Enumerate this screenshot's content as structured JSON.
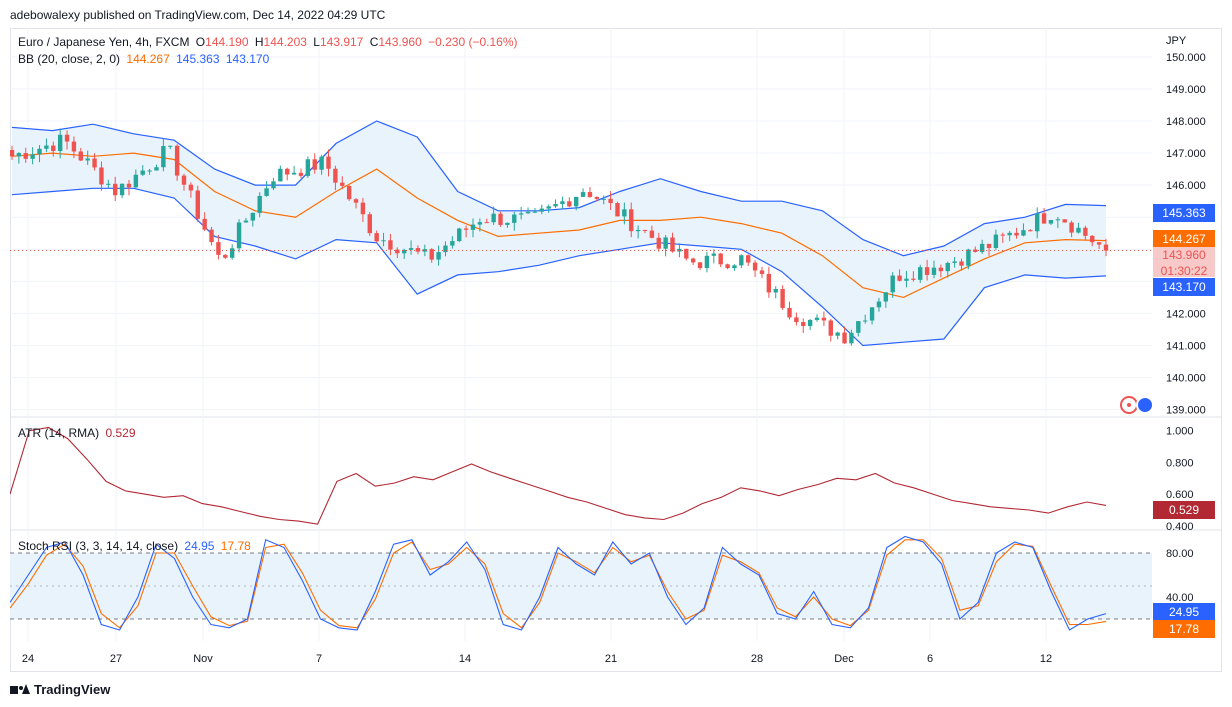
{
  "header": {
    "publisher": "adebowalexy published on TradingView.com, Dec 14, 2022 04:29 UTC"
  },
  "legend_main": {
    "symbol": "Euro / Japanese Yen, 4h, FXCM",
    "o_label": "O",
    "o": "144.190",
    "h_label": "H",
    "h": "144.203",
    "l_label": "L",
    "l": "143.917",
    "c_label": "C",
    "c": "143.960",
    "change": "−0.230 (−0.16%)"
  },
  "legend_bb": {
    "name": "BB (20, close, 2, 0)",
    "basis": "144.267",
    "upper": "145.363",
    "lower": "143.170"
  },
  "legend_atr": {
    "name": "ATR (14, RMA)",
    "value": "0.529"
  },
  "legend_stoch": {
    "name": "Stoch RSI (3, 3, 14, 14, close)",
    "k": "24.95",
    "d": "17.78"
  },
  "badges": {
    "upper": "145.363",
    "basis": "144.267",
    "price": "143.960",
    "countdown": "01:30:22",
    "lower": "143.170",
    "atr": "0.529",
    "stoch_k": "24.95",
    "stoch_d": "17.78"
  },
  "currency": "JPY",
  "footer": {
    "brand": "TradingView"
  },
  "colors": {
    "up": "#26a69a",
    "down": "#ef5350",
    "bb_basis": "#ff6d00",
    "bb_band": "#2962ff",
    "bb_fill": "#e8f3fc",
    "atr": "#b22833",
    "stoch_k": "#2962ff",
    "stoch_d": "#ff6d00"
  },
  "chart_data": [
    {
      "type": "candlestick",
      "title": "Euro / Japanese Yen, 4h, FXCM",
      "ylim": [
        138.8,
        150.9
      ],
      "y_ticks": [
        139,
        140,
        141,
        142,
        143,
        144,
        145,
        146,
        147,
        148,
        149,
        150
      ],
      "y_tick_labels": [
        "139.000",
        "140.000",
        "141.000",
        "142.000",
        "143.000",
        "144.000",
        "145.000",
        "146.000",
        "147.000",
        "148.000",
        "149.000",
        "150.000"
      ],
      "x_tick_labels": [
        "24",
        "27",
        "Nov",
        "7",
        "14",
        "21",
        "28",
        "Dec",
        "6",
        "12"
      ],
      "current_price": 143.96,
      "ohlc_keyframes": [
        {
          "x": "Oct 24",
          "close": 146.9
        },
        {
          "x": "Oct 27",
          "close": 147.4
        },
        {
          "x": "Oct 28",
          "close": 145.8
        },
        {
          "x": "Nov 1",
          "close": 147.1
        },
        {
          "x": "Nov 4",
          "close": 143.6
        },
        {
          "x": "Nov 7",
          "close": 146.3
        },
        {
          "x": "Nov 10",
          "close": 146.7
        },
        {
          "x": "Nov 11",
          "close": 144.4
        },
        {
          "x": "Nov 14",
          "close": 143.7
        },
        {
          "x": "Nov 17",
          "close": 145.0
        },
        {
          "x": "Nov 21",
          "close": 144.9
        },
        {
          "x": "Nov 23",
          "close": 145.9
        },
        {
          "x": "Nov 25",
          "close": 144.7
        },
        {
          "x": "Nov 28",
          "close": 143.6
        },
        {
          "x": "Dec 1",
          "close": 143.7
        },
        {
          "x": "Dec 2",
          "close": 142.0
        },
        {
          "x": "Dec 5",
          "close": 141.3
        },
        {
          "x": "Dec 6",
          "close": 143.2
        },
        {
          "x": "Dec 9",
          "close": 143.6
        },
        {
          "x": "Dec 12",
          "close": 144.3
        },
        {
          "x": "Dec 13",
          "close": 145.2
        },
        {
          "x": "Dec 14",
          "close": 143.96
        }
      ],
      "bollinger": {
        "basis": [
          146.9,
          147.0,
          146.9,
          147.0,
          146.8,
          145.8,
          145.2,
          145.0,
          145.8,
          146.5,
          145.6,
          144.9,
          144.4,
          144.5,
          144.6,
          144.9,
          144.9,
          145.0,
          144.8,
          144.5,
          143.8,
          142.8,
          142.5,
          143.1,
          143.7,
          144.2,
          144.3,
          144.27
        ],
        "upper": [
          147.8,
          147.7,
          147.9,
          147.6,
          147.4,
          146.5,
          146.0,
          146.0,
          147.3,
          148.0,
          147.5,
          145.8,
          145.2,
          145.2,
          145.3,
          145.8,
          146.2,
          145.8,
          145.5,
          145.5,
          145.2,
          144.3,
          143.8,
          144.1,
          144.8,
          145.0,
          145.4,
          145.363
        ],
        "lower": [
          145.7,
          145.8,
          145.9,
          145.9,
          145.6,
          144.4,
          144.1,
          143.7,
          144.3,
          144.2,
          142.6,
          143.2,
          143.3,
          143.5,
          143.8,
          144.0,
          144.2,
          144.1,
          144.0,
          143.3,
          142.2,
          141.0,
          141.1,
          141.2,
          142.8,
          143.2,
          143.1,
          143.17
        ]
      }
    },
    {
      "type": "line",
      "title": "ATR (14, RMA)",
      "ylim": [
        0.38,
        1.08
      ],
      "y_ticks": [
        0.4,
        0.6,
        0.8,
        1.0
      ],
      "y_tick_labels": [
        "0.400",
        "0.600",
        "0.800",
        "1.000"
      ],
      "series": [
        {
          "name": "ATR",
          "values": [
            0.6,
            1.0,
            1.02,
            0.95,
            0.82,
            0.68,
            0.62,
            0.6,
            0.58,
            0.59,
            0.54,
            0.52,
            0.49,
            0.46,
            0.44,
            0.43,
            0.41,
            0.68,
            0.73,
            0.65,
            0.67,
            0.71,
            0.69,
            0.74,
            0.79,
            0.74,
            0.7,
            0.66,
            0.62,
            0.58,
            0.55,
            0.51,
            0.47,
            0.45,
            0.44,
            0.48,
            0.54,
            0.58,
            0.64,
            0.62,
            0.59,
            0.63,
            0.66,
            0.7,
            0.69,
            0.73,
            0.67,
            0.64,
            0.6,
            0.56,
            0.54,
            0.52,
            0.51,
            0.5,
            0.48,
            0.52,
            0.55,
            0.529
          ]
        }
      ]
    },
    {
      "type": "line",
      "title": "Stoch RSI (3, 3, 14, 14, close)",
      "ylim": [
        0,
        100
      ],
      "y_ticks": [
        40,
        80
      ],
      "y_tick_labels": [
        "40.00",
        "80.00"
      ],
      "bands": [
        20,
        80
      ],
      "series": [
        {
          "name": "K",
          "values": [
            35,
            60,
            85,
            90,
            60,
            15,
            10,
            40,
            88,
            75,
            40,
            15,
            12,
            20,
            92,
            85,
            55,
            20,
            12,
            10,
            45,
            88,
            92,
            60,
            72,
            90,
            65,
            15,
            10,
            40,
            85,
            70,
            60,
            90,
            70,
            80,
            40,
            15,
            30,
            85,
            70,
            60,
            25,
            20,
            45,
            15,
            12,
            30,
            85,
            95,
            90,
            70,
            20,
            35,
            80,
            90,
            85,
            45,
            10,
            20,
            24.95
          ]
        },
        {
          "name": "D",
          "values": [
            30,
            52,
            78,
            88,
            68,
            25,
            12,
            32,
            80,
            80,
            50,
            22,
            14,
            18,
            85,
            88,
            62,
            28,
            14,
            12,
            38,
            80,
            90,
            65,
            70,
            85,
            70,
            25,
            12,
            35,
            80,
            72,
            62,
            85,
            72,
            78,
            45,
            20,
            28,
            78,
            72,
            62,
            30,
            22,
            40,
            20,
            14,
            28,
            78,
            92,
            92,
            75,
            28,
            32,
            72,
            88,
            86,
            50,
            15,
            15,
            17.78
          ]
        }
      ]
    }
  ]
}
